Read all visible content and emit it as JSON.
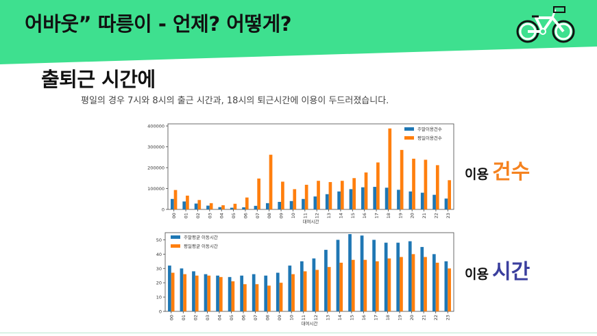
{
  "header": {
    "title": "어바웃” 따릉이 - 언제? 어떻게?",
    "color": "#3ee08f",
    "icon": "bicycle-icon"
  },
  "section": {
    "title": "출퇴근 시간에",
    "description": "평일의 경우 7시와 8시의 출근 시간과, 18시의 퇴근시간에 이용이 두드러졌습니다."
  },
  "labels": {
    "count_prefix": "이용",
    "count_word": "건수",
    "count_color": "#f5821f",
    "time_prefix": "이용",
    "time_word": "시간",
    "time_color": "#3b3f9e"
  },
  "chart_data": [
    {
      "type": "bar",
      "categories": [
        "00",
        "01",
        "02",
        "03",
        "04",
        "05",
        "06",
        "07",
        "08",
        "09",
        "10",
        "11",
        "12",
        "13",
        "14",
        "15",
        "16",
        "17",
        "18",
        "19",
        "20",
        "21",
        "22",
        "23"
      ],
      "series": [
        {
          "name": "주말이용건수",
          "color": "#1f77b4",
          "values": [
            50000,
            38000,
            28000,
            18000,
            11000,
            8000,
            10000,
            17000,
            30000,
            36000,
            40000,
            50000,
            62000,
            73000,
            86000,
            97000,
            106000,
            108000,
            104000,
            94000,
            86000,
            80000,
            70000,
            52000
          ]
        },
        {
          "name": "평일이용건수",
          "color": "#ff7f0e",
          "values": [
            93000,
            66000,
            45000,
            30000,
            20000,
            27000,
            57000,
            148000,
            262000,
            133000,
            97000,
            118000,
            137000,
            131000,
            137000,
            150000,
            177000,
            225000,
            388000,
            285000,
            243000,
            238000,
            212000,
            140000
          ]
        }
      ],
      "xlabel": "대여시간",
      "ylabel": "",
      "ylim": [
        0,
        410000
      ],
      "yticks": [
        0,
        100000,
        200000,
        300000,
        400000
      ],
      "legend": "top-right",
      "grid": false
    },
    {
      "type": "bar",
      "categories": [
        "00",
        "01",
        "02",
        "03",
        "04",
        "05",
        "06",
        "07",
        "08",
        "09",
        "10",
        "11",
        "12",
        "13",
        "14",
        "15",
        "16",
        "17",
        "18",
        "19",
        "20",
        "21",
        "22",
        "23"
      ],
      "series": [
        {
          "name": "주말평균 이동시간",
          "color": "#1f77b4",
          "values": [
            32,
            30,
            28,
            26,
            25,
            24,
            25,
            26,
            25,
            27,
            32,
            35,
            37,
            43,
            50,
            54,
            53,
            50,
            48,
            48,
            49,
            45,
            40,
            35
          ]
        },
        {
          "name": "평일평균 이동시간",
          "color": "#ff7f0e",
          "values": [
            27,
            26,
            25,
            25,
            24,
            21,
            19,
            19,
            18,
            20,
            26,
            28,
            29,
            31,
            34,
            36,
            36,
            35,
            37,
            38,
            40,
            38,
            34,
            30
          ]
        }
      ],
      "xlabel": "대여시간",
      "ylabel": "",
      "ylim": [
        0,
        55
      ],
      "yticks": [
        0,
        10,
        20,
        30,
        40,
        50
      ],
      "legend": "top-left",
      "grid": false
    }
  ]
}
